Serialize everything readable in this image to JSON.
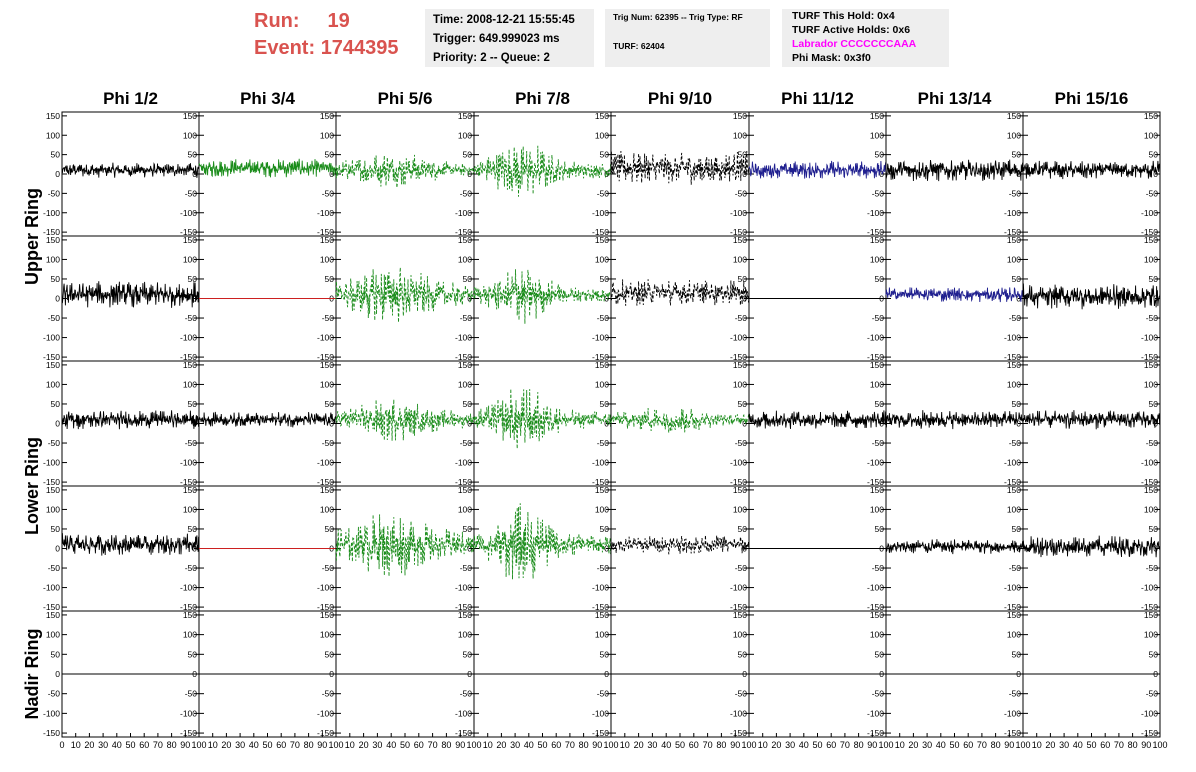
{
  "header": {
    "run_label": "Run:",
    "run_value": "19",
    "event_label": "Event:",
    "event_value": "1744395"
  },
  "info_box_1": {
    "time": "Time: 2008-12-21 15:55:45",
    "trigger": "Trigger: 649.999023 ms",
    "priority": "Priority: 2 -- Queue: 2"
  },
  "info_box_2": {
    "trig": "Trig Num: 62395 -- Trig Type: RF",
    "turf": "TURF: 62404"
  },
  "info_box_3": {
    "this_hold": "TURF This Hold: 0x4",
    "active_holds": "TURF Active Holds: 0x6",
    "labrador": "Labrador CCCCCCCAAA",
    "phi_mask": "Phi Mask: 0x3f0"
  },
  "colors": {
    "header_red": "#d9534f",
    "black_trace": "#000000",
    "green_trace": "#1a8c1a",
    "blue_trace": "#1f1f8f",
    "red_trace": "#cc2020",
    "magenta_text": "#ff00ff",
    "info_bg": "#eeeeee"
  },
  "chart_data": {
    "type": "line",
    "columns": [
      "Phi 1/2",
      "Phi 3/4",
      "Phi 5/6",
      "Phi 7/8",
      "Phi 9/10",
      "Phi 11/12",
      "Phi 13/14",
      "Phi 15/16"
    ],
    "rows": [
      "Upper Ring",
      "Upper Ring",
      "Lower Ring",
      "Lower Ring",
      "Nadir Ring"
    ],
    "row_labels": [
      "Upper Ring",
      "Lower Ring",
      "Nadir Ring"
    ],
    "ylim": [
      -160,
      160
    ],
    "y_ticks": [
      150,
      100,
      50,
      0,
      -50,
      -100,
      -150
    ],
    "xlim": [
      0,
      100
    ],
    "x_ticks_first": [
      "0",
      "10",
      "20",
      "30",
      "40",
      "50",
      "60",
      "70",
      "80",
      "90",
      "100"
    ],
    "x_ticks_other": [
      "10",
      "20",
      "30",
      "40",
      "50",
      "60",
      "70",
      "80",
      "90",
      "100"
    ],
    "panels": [
      [
        {
          "style": "solid",
          "color": "black",
          "offset": 10,
          "amp": 20,
          "env": "flat"
        },
        {
          "style": "solid",
          "color": "green",
          "offset": 15,
          "amp": 25,
          "env": "flat"
        },
        {
          "style": "dashed",
          "color": "green",
          "offset": 10,
          "amp": 50,
          "env": "mid"
        },
        {
          "style": "dashed",
          "color": "green",
          "offset": 10,
          "amp": 90,
          "env": "burst"
        },
        {
          "style": "dashed",
          "color": "black",
          "offset": 15,
          "amp": 45,
          "env": "flat"
        },
        {
          "style": "solid",
          "color": "blue",
          "offset": 10,
          "amp": 25,
          "env": "flat"
        },
        {
          "style": "solid",
          "color": "black",
          "offset": 10,
          "amp": 30,
          "env": "flat"
        },
        {
          "style": "solid",
          "color": "black",
          "offset": 10,
          "amp": 25,
          "env": "flat"
        }
      ],
      [
        {
          "style": "solid",
          "color": "black",
          "offset": 10,
          "amp": 35,
          "env": "flat"
        },
        {
          "style": "solid",
          "color": "red",
          "offset": 0,
          "amp": 0,
          "env": "flat"
        },
        {
          "style": "dashed",
          "color": "green",
          "offset": 10,
          "amp": 80,
          "env": "mid"
        },
        {
          "style": "dashed",
          "color": "green",
          "offset": 10,
          "amp": 85,
          "env": "burst"
        },
        {
          "style": "dashed",
          "color": "black",
          "offset": 15,
          "amp": 35,
          "env": "flat"
        },
        {
          "style": "solid",
          "color": "black",
          "offset": 0,
          "amp": 0,
          "env": "flat"
        },
        {
          "style": "solid",
          "color": "blue",
          "offset": 10,
          "amp": 20,
          "env": "flat"
        },
        {
          "style": "solid",
          "color": "black",
          "offset": 5,
          "amp": 35,
          "env": "flat"
        }
      ],
      [
        {
          "style": "solid",
          "color": "black",
          "offset": 10,
          "amp": 25,
          "env": "flat"
        },
        {
          "style": "solid",
          "color": "black",
          "offset": 10,
          "amp": 20,
          "env": "flat"
        },
        {
          "style": "dashed",
          "color": "green",
          "offset": 10,
          "amp": 60,
          "env": "mid"
        },
        {
          "style": "dashed",
          "color": "green",
          "offset": 10,
          "amp": 95,
          "env": "burst"
        },
        {
          "style": "dashed",
          "color": "green",
          "offset": 10,
          "amp": 40,
          "env": "mid"
        },
        {
          "style": "solid",
          "color": "black",
          "offset": 10,
          "amp": 25,
          "env": "flat"
        },
        {
          "style": "solid",
          "color": "black",
          "offset": 10,
          "amp": 25,
          "env": "flat"
        },
        {
          "style": "solid",
          "color": "black",
          "offset": 10,
          "amp": 25,
          "env": "flat"
        }
      ],
      [
        {
          "style": "solid",
          "color": "black",
          "offset": 10,
          "amp": 30,
          "env": "flat"
        },
        {
          "style": "solid",
          "color": "red",
          "offset": 0,
          "amp": 0,
          "env": "flat"
        },
        {
          "style": "dashed",
          "color": "green",
          "offset": 10,
          "amp": 90,
          "env": "mid"
        },
        {
          "style": "dashed",
          "color": "green",
          "offset": 10,
          "amp": 110,
          "env": "burst"
        },
        {
          "style": "dashed",
          "color": "black",
          "offset": 10,
          "amp": 25,
          "env": "flat"
        },
        {
          "style": "solid",
          "color": "black",
          "offset": 0,
          "amp": 0,
          "env": "flat"
        },
        {
          "style": "solid",
          "color": "black",
          "offset": 5,
          "amp": 20,
          "env": "flat"
        },
        {
          "style": "solid",
          "color": "black",
          "offset": 5,
          "amp": 30,
          "env": "flat"
        }
      ],
      [
        {
          "style": "solid",
          "color": "black",
          "offset": 0,
          "amp": 0,
          "env": "flat"
        },
        {
          "style": "solid",
          "color": "black",
          "offset": 0,
          "amp": 0,
          "env": "flat"
        },
        {
          "style": "solid",
          "color": "black",
          "offset": 0,
          "amp": 0,
          "env": "flat"
        },
        {
          "style": "solid",
          "color": "black",
          "offset": 0,
          "amp": 0,
          "env": "flat"
        },
        {
          "style": "solid",
          "color": "black",
          "offset": 0,
          "amp": 0,
          "env": "flat"
        },
        {
          "style": "solid",
          "color": "black",
          "offset": 0,
          "amp": 0,
          "env": "flat"
        },
        {
          "style": "solid",
          "color": "black",
          "offset": 0,
          "amp": 0,
          "env": "flat"
        },
        {
          "style": "solid",
          "color": "black",
          "offset": 0,
          "amp": 0,
          "env": "flat"
        }
      ]
    ]
  }
}
